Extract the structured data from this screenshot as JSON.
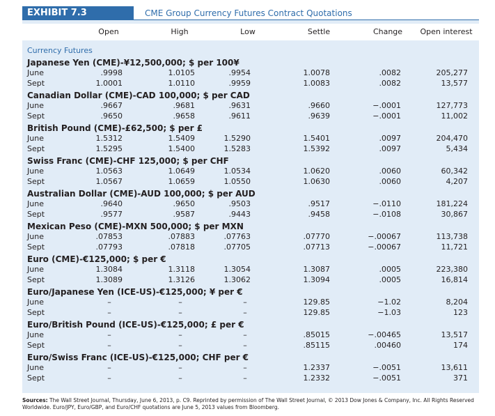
{
  "exhibit": {
    "label": "EXHIBIT 7.3",
    "title": "CME Group Currency Futures Contract Quotations"
  },
  "columns": {
    "open": "Open",
    "high": "High",
    "low": "Low",
    "settle": "Settle",
    "change": "Change",
    "open_interest": "Open interest"
  },
  "section_title": "Currency Futures",
  "groups": [
    {
      "name": "Japanese Yen (CME)-¥12,500,000; $ per 100¥",
      "rows": [
        {
          "month": "June",
          "open": ".9998",
          "high": "1.0105",
          "low": ".9954",
          "settle": "1.0078",
          "change": ".0082",
          "oi": "205,277"
        },
        {
          "month": "Sept",
          "open": "1.0001",
          "high": "1.0110",
          "low": ".9959",
          "settle": "1.0083",
          "change": ".0082",
          "oi": "13,577"
        }
      ]
    },
    {
      "name": "Canadian Dollar (CME)-CAD 100,000; $ per CAD",
      "rows": [
        {
          "month": "June",
          "open": ".9667",
          "high": ".9681",
          "low": ".9631",
          "settle": ".9660",
          "change": "−.0001",
          "oi": "127,773"
        },
        {
          "month": "Sept",
          "open": ".9650",
          "high": ".9658",
          "low": ".9611",
          "settle": ".9639",
          "change": "−.0001",
          "oi": "11,002"
        }
      ]
    },
    {
      "name": "British Pound (CME)-£62,500; $ per £",
      "rows": [
        {
          "month": "June",
          "open": "1.5312",
          "high": "1.5409",
          "low": "1.5290",
          "settle": "1.5401",
          "change": ".0097",
          "oi": "204,470"
        },
        {
          "month": "Sept",
          "open": "1.5295",
          "high": "1.5400",
          "low": "1.5283",
          "settle": "1.5392",
          "change": ".0097",
          "oi": "5,434"
        }
      ]
    },
    {
      "name": "Swiss Franc (CME)-CHF 125,000; $ per CHF",
      "rows": [
        {
          "month": "June",
          "open": "1.0563",
          "high": "1.0649",
          "low": "1.0534",
          "settle": "1.0620",
          "change": ".0060",
          "oi": "60,342"
        },
        {
          "month": "Sept",
          "open": "1.0567",
          "high": "1.0659",
          "low": "1.0550",
          "settle": "1.0630",
          "change": ".0060",
          "oi": "4,207"
        }
      ]
    },
    {
      "name": "Australian Dollar (CME)-AUD 100,000; $ per AUD",
      "rows": [
        {
          "month": "June",
          "open": ".9640",
          "high": ".9650",
          "low": ".9503",
          "settle": ".9517",
          "change": "−.0110",
          "oi": "181,224"
        },
        {
          "month": "Sept",
          "open": ".9577",
          "high": ".9587",
          "low": ".9443",
          "settle": ".9458",
          "change": "−.0108",
          "oi": "30,867"
        }
      ]
    },
    {
      "name": "Mexican Peso (CME)-MXN 500,000; $ per MXN",
      "rows": [
        {
          "month": "June",
          "open": ".07853",
          "high": ".07883",
          "low": ".07763",
          "settle": ".07770",
          "change": "−.00067",
          "oi": "113,738"
        },
        {
          "month": "Sept",
          "open": ".07793",
          "high": ".07818",
          "low": ".07705",
          "settle": ".07713",
          "change": "−.00067",
          "oi": "11,721"
        }
      ]
    },
    {
      "name": "Euro (CME)-€125,000; $ per €",
      "rows": [
        {
          "month": "June",
          "open": "1.3084",
          "high": "1.3118",
          "low": "1.3054",
          "settle": "1.3087",
          "change": ".0005",
          "oi": "223,380"
        },
        {
          "month": "Sept",
          "open": "1.3089",
          "high": "1.3126",
          "low": "1.3062",
          "settle": "1.3094",
          "change": ".0005",
          "oi": "16,814"
        }
      ]
    },
    {
      "name": "Euro/Japanese Yen (ICE-US)-€125,000; ¥ per €",
      "rows": [
        {
          "month": "June",
          "open": "–",
          "high": "–",
          "low": "–",
          "settle": "129.85",
          "change": "−1.02",
          "oi": "8,204"
        },
        {
          "month": "Sept",
          "open": "–",
          "high": "–",
          "low": "–",
          "settle": "129.85",
          "change": "−1.03",
          "oi": "123"
        }
      ]
    },
    {
      "name": "Euro/British Pound (ICE-US)-€125,000; £ per €",
      "rows": [
        {
          "month": "June",
          "open": "–",
          "high": "–",
          "low": "–",
          "settle": ".85015",
          "change": "−.00465",
          "oi": "13,517"
        },
        {
          "month": "Sept",
          "open": "–",
          "high": "–",
          "low": "–",
          "settle": ".85115",
          "change": ".00460",
          "oi": "174"
        }
      ]
    },
    {
      "name": "Euro/Swiss Franc (ICE-US)-€125,000; CHF per €",
      "rows": [
        {
          "month": "June",
          "open": "–",
          "high": "–",
          "low": "–",
          "settle": "1.2337",
          "change": "−.0051",
          "oi": "13,611"
        },
        {
          "month": "Sept",
          "open": "–",
          "high": "–",
          "low": "–",
          "settle": "1.2332",
          "change": "−.0051",
          "oi": "371"
        }
      ]
    }
  ],
  "sources": {
    "label": "Sources:",
    "text": "The Wall Street Journal, Thursday, June 6, 2013, p. C9. Reprinted by permission of The Wall Street Journal, © 2013 Dow Jones & Company, Inc. All Rights Reserved Worldwide. Euro/JPY, Euro/GBP, and Euro/CHF quotations are June 5, 2013 values from Bloomberg."
  }
}
